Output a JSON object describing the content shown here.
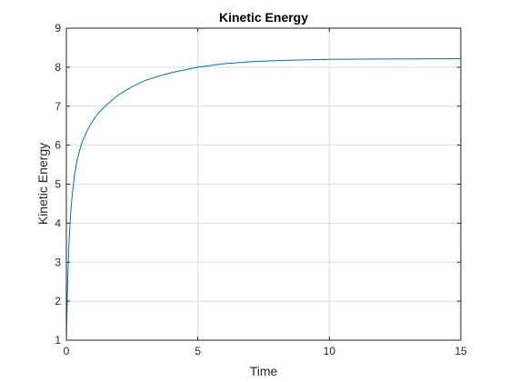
{
  "chart_data": {
    "type": "line",
    "title": "Kinetic Energy",
    "xlabel": "Time",
    "ylabel": "Kinetic Energy",
    "xlim": [
      0,
      15
    ],
    "ylim": [
      1,
      9
    ],
    "xticks": [
      0,
      5,
      10,
      15
    ],
    "yticks": [
      1,
      2,
      3,
      4,
      5,
      6,
      7,
      8,
      9
    ],
    "grid": true,
    "series": [
      {
        "color": "#0072BD",
        "x": [
          0,
          0.05,
          0.1,
          0.15,
          0.2,
          0.3,
          0.4,
          0.5,
          0.6,
          0.8,
          1.0,
          1.2,
          1.5,
          2.0,
          2.5,
          3.0,
          3.5,
          4.0,
          5.0,
          6.0,
          7.0,
          8.0,
          10.0,
          12.0,
          15.0
        ],
        "y": [
          1.0,
          2.53,
          3.47,
          4.11,
          4.57,
          5.19,
          5.58,
          5.86,
          6.08,
          6.39,
          6.62,
          6.81,
          7.02,
          7.3,
          7.5,
          7.66,
          7.77,
          7.86,
          8.0,
          8.09,
          8.14,
          8.17,
          8.2,
          8.21,
          8.22
        ]
      }
    ]
  }
}
